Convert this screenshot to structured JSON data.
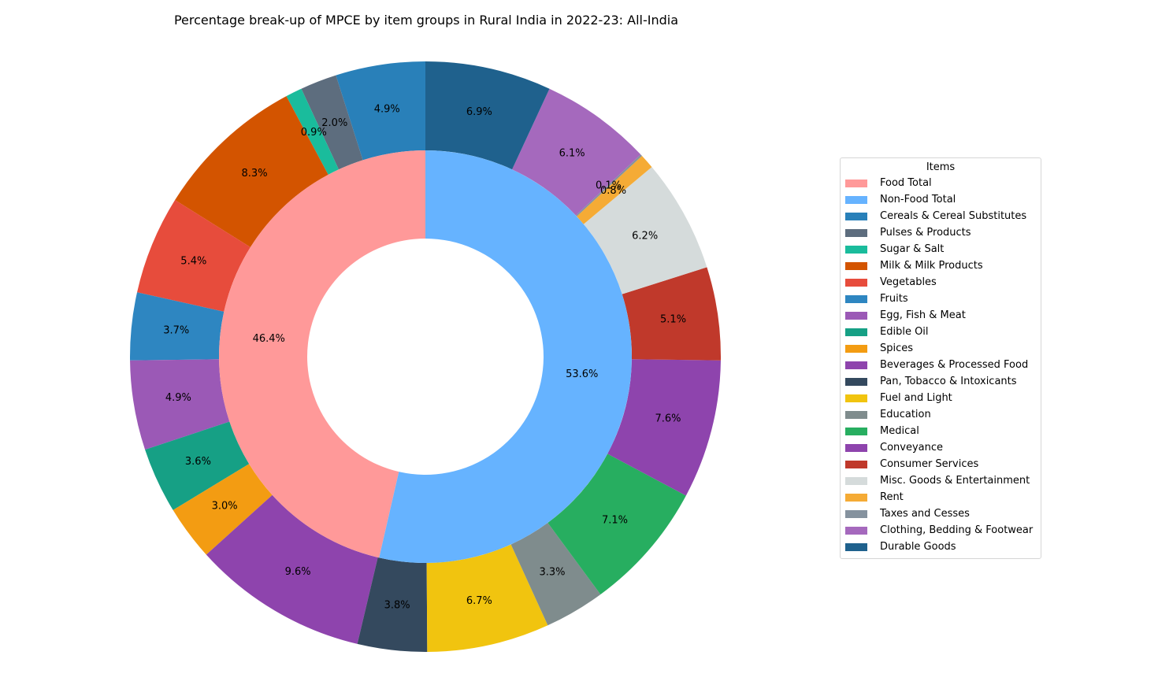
{
  "chart_data": {
    "type": "pie",
    "style": "nested-donut",
    "title": "Percentage break-up of MPCE by item groups in Rural India in 2022-23: All-India",
    "legend_title": "Items",
    "legend_position": "right",
    "inner_ring": [
      {
        "label": "Food Total",
        "value": 46.4,
        "text": "46.4%",
        "color": "#ff9999"
      },
      {
        "label": "Non-Food Total",
        "value": 53.6,
        "text": "53.6%",
        "color": "#66b3ff"
      }
    ],
    "outer_ring": [
      {
        "label": "Cereals & Cereal Substitutes",
        "value": 4.9,
        "text": "4.9%",
        "color": "#2980b9"
      },
      {
        "label": "Pulses & Products",
        "value": 2.0,
        "text": "2.0%",
        "color": "#5d6d7e"
      },
      {
        "label": "Sugar & Salt",
        "value": 0.9,
        "text": "0.9%",
        "color": "#1abc9c"
      },
      {
        "label": "Milk & Milk Products",
        "value": 8.3,
        "text": "8.3%",
        "color": "#d35400"
      },
      {
        "label": "Vegetables",
        "value": 5.4,
        "text": "5.4%",
        "color": "#e74c3c"
      },
      {
        "label": "Fruits",
        "value": 3.7,
        "text": "3.7%",
        "color": "#2e86c1"
      },
      {
        "label": "Egg, Fish & Meat",
        "value": 4.9,
        "text": "4.9%",
        "color": "#9b59b6"
      },
      {
        "label": "Edible Oil",
        "value": 3.6,
        "text": "3.6%",
        "color": "#16a085"
      },
      {
        "label": "Spices",
        "value": 3.0,
        "text": "3.0%",
        "color": "#f39c12"
      },
      {
        "label": "Beverages & Processed Food",
        "value": 9.6,
        "text": "9.6%",
        "color": "#8e44ad"
      },
      {
        "label": "Pan, Tobacco & Intoxicants",
        "value": 3.8,
        "text": "3.8%",
        "color": "#34495e"
      },
      {
        "label": "Fuel and Light",
        "value": 6.7,
        "text": "6.7%",
        "color": "#f1c40f"
      },
      {
        "label": "Education",
        "value": 3.3,
        "text": "3.3%",
        "color": "#7f8c8d"
      },
      {
        "label": "Medical",
        "value": 7.1,
        "text": "7.1%",
        "color": "#27ae60"
      },
      {
        "label": "Conveyance",
        "value": 7.6,
        "text": "7.6%",
        "color": "#8e44ad"
      },
      {
        "label": "Consumer Services",
        "value": 5.1,
        "text": "5.1%",
        "color": "#c0392b"
      },
      {
        "label": "Misc. Goods & Entertainment",
        "value": 6.2,
        "text": "6.2%",
        "color": "#d5dbdb"
      },
      {
        "label": "Rent",
        "value": 0.8,
        "text": "0.8%",
        "color": "#f5ab35"
      },
      {
        "label": "Taxes and Cesses",
        "value": 0.1,
        "text": "0.1%",
        "color": "#85929e"
      },
      {
        "label": "Clothing, Bedding & Footwear",
        "value": 6.1,
        "text": "6.1%",
        "color": "#a569bd"
      },
      {
        "label": "Durable Goods",
        "value": 6.9,
        "text": "6.9%",
        "color": "#1f618d"
      }
    ]
  }
}
